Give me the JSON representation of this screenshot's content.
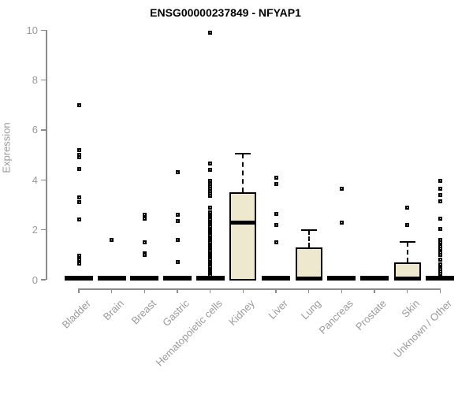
{
  "title": "ENSG00000237849 - NFYAP1",
  "chart_data": {
    "type": "boxplot",
    "title": "ENSG00000237849 - NFYAP1",
    "ylabel": "Expression",
    "xlabel": "",
    "ylim": [
      0,
      10
    ],
    "yticks": [
      0,
      2,
      4,
      6,
      8,
      10
    ],
    "grid": "off",
    "legend": "none",
    "categories": [
      "Bladder",
      "Brain",
      "Breast",
      "Gastric",
      "Hematopoietic cells",
      "Kidney",
      "Liver",
      "Lung",
      "Pancreas",
      "Prostate",
      "Skin",
      "Unknown / Other"
    ],
    "series": [
      {
        "label": "Bladder",
        "collapsed": true,
        "box": {
          "q1": 0,
          "median": 0,
          "q3": 0,
          "whisker_hi": 0
        },
        "outliers": [
          7.0,
          5.2,
          5.0,
          4.9,
          4.45,
          3.3,
          3.1,
          2.4,
          0.95,
          0.8,
          0.65
        ]
      },
      {
        "label": "Brain",
        "collapsed": true,
        "box": {
          "q1": 0,
          "median": 0,
          "q3": 0,
          "whisker_hi": 0
        },
        "outliers": [
          1.6
        ]
      },
      {
        "label": "Breast",
        "collapsed": true,
        "box": {
          "q1": 0,
          "median": 0,
          "q3": 0,
          "whisker_hi": 0
        },
        "outliers": [
          2.6,
          2.45,
          1.5,
          1.05,
          0.98
        ]
      },
      {
        "label": "Gastric",
        "collapsed": true,
        "box": {
          "q1": 0,
          "median": 0,
          "q3": 0,
          "whisker_hi": 0
        },
        "outliers": [
          4.3,
          2.6,
          2.35,
          1.6,
          0.7
        ]
      },
      {
        "label": "Hematopoietic cells",
        "collapsed": true,
        "box": {
          "q1": 0,
          "median": 0,
          "q3": 0,
          "whisker_hi": 0
        },
        "outliers": [
          9.9,
          4.65,
          4.4,
          3.95,
          3.85,
          3.75,
          3.65,
          3.55,
          3.45,
          3.35,
          2.9,
          2.7,
          2.62,
          2.55,
          2.48,
          2.4,
          2.33,
          2.26,
          2.19,
          2.12,
          2.05,
          1.98,
          1.91,
          1.84,
          1.77,
          1.7,
          1.63,
          1.56,
          1.49,
          1.42,
          1.35,
          1.28,
          1.21,
          1.14,
          1.07,
          1.0,
          0.93,
          0.86,
          0.79,
          0.72,
          0.65,
          0.58,
          0.51,
          0.44,
          0.37,
          0.3,
          0.23,
          0.16
        ]
      },
      {
        "label": "Kidney",
        "collapsed": false,
        "box": {
          "q1": 0,
          "median": 2.3,
          "q3": 3.5,
          "whisker_hi": 5.05
        },
        "outliers": []
      },
      {
        "label": "Liver",
        "collapsed": true,
        "box": {
          "q1": 0,
          "median": 0,
          "q3": 0,
          "whisker_hi": 0
        },
        "outliers": [
          4.1,
          3.85,
          2.65,
          2.2,
          1.5
        ]
      },
      {
        "label": "Lung",
        "collapsed": false,
        "box": {
          "q1": 0,
          "median": 0.05,
          "q3": 1.3,
          "whisker_hi": 2.0
        },
        "outliers": []
      },
      {
        "label": "Pancreas",
        "collapsed": true,
        "box": {
          "q1": 0,
          "median": 0,
          "q3": 0,
          "whisker_hi": 0
        },
        "outliers": [
          3.65,
          2.3
        ]
      },
      {
        "label": "Prostate",
        "collapsed": true,
        "box": {
          "q1": 0,
          "median": 0,
          "q3": 0,
          "whisker_hi": 0
        },
        "outliers": []
      },
      {
        "label": "Skin",
        "collapsed": false,
        "box": {
          "q1": 0,
          "median": 0.05,
          "q3": 0.7,
          "whisker_hi": 1.5
        },
        "outliers": [
          2.9,
          2.2
        ]
      },
      {
        "label": "Unknown / Other",
        "collapsed": true,
        "box": {
          "q1": 0,
          "median": 0,
          "q3": 0,
          "whisker_hi": 0
        },
        "outliers": [
          3.95,
          3.65,
          3.4,
          3.15,
          2.45,
          2.05,
          1.6,
          1.5,
          1.35,
          1.25,
          1.1,
          1.0,
          0.8,
          0.6,
          0.5,
          0.42,
          0.33,
          0.25
        ]
      }
    ],
    "colors": {
      "box_fill": "#ede8ce",
      "box_border": "#000000",
      "median": "#000000",
      "outlier_border": "#000000",
      "axis": "#8c8c8c",
      "axis_text": "#9a9a9a",
      "title": "#000000"
    }
  }
}
